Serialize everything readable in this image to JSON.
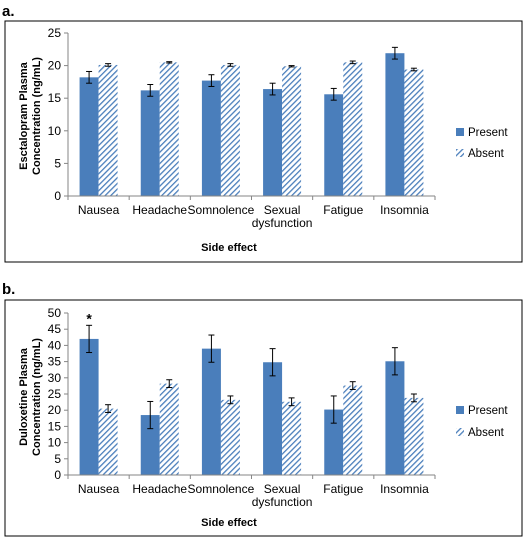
{
  "colors": {
    "present": "#4a7ebb",
    "absent_stripe": "#4a7ebb",
    "axis": "#868686",
    "frame": "#000000",
    "text": "#000000"
  },
  "legend": {
    "present_label": "Present",
    "absent_label": "Absent"
  },
  "chart_data": [
    {
      "type": "bar",
      "panel_label": "a.",
      "categories": [
        "Nausea",
        "Headache",
        "Somnolence",
        "Sexual dysfunction",
        "Fatigue",
        "Insomnia"
      ],
      "category_lines": [
        [
          "Nausea"
        ],
        [
          "Headache"
        ],
        [
          "Somnolence"
        ],
        [
          "Sexual",
          "dysfunction"
        ],
        [
          "Fatigue"
        ],
        [
          "Insomnia"
        ]
      ],
      "series": [
        {
          "name": "Present",
          "values": [
            18.2,
            16.2,
            17.7,
            16.4,
            15.6,
            21.9
          ],
          "errors": [
            0.9,
            0.9,
            0.9,
            0.9,
            0.9,
            0.9
          ]
        },
        {
          "name": "Absent",
          "values": [
            20.1,
            20.5,
            20.1,
            19.9,
            20.5,
            19.4
          ],
          "errors": [
            0.2,
            0.1,
            0.2,
            0.1,
            0.2,
            0.2
          ]
        }
      ],
      "xlabel": "Side effect",
      "ylabel_lines": [
        "Esctalopram Plasma",
        "Concentration (ng/mL)"
      ],
      "ylim": [
        0,
        25
      ],
      "yticks": [
        "0",
        "5",
        "10",
        "15",
        "20",
        "25"
      ],
      "grid": false,
      "legend_position": "right",
      "annotations": []
    },
    {
      "type": "bar",
      "panel_label": "b.",
      "categories": [
        "Nausea",
        "Headache",
        "Somnolence",
        "Sexual dysfunction",
        "Fatigue",
        "Insomnia"
      ],
      "category_lines": [
        [
          "Nausea"
        ],
        [
          "Headache"
        ],
        [
          "Somnolence"
        ],
        [
          "Sexual",
          "dysfunction"
        ],
        [
          "Fatigue"
        ],
        [
          "Insomnia"
        ]
      ],
      "series": [
        {
          "name": "Present",
          "values": [
            42,
            18.5,
            39,
            34.8,
            20.2,
            35.1
          ],
          "errors": [
            4.2,
            4.2,
            4.2,
            4.2,
            4.2,
            4.2
          ]
        },
        {
          "name": "Absent",
          "values": [
            20.5,
            28.2,
            23.2,
            22.6,
            27.6,
            23.8
          ],
          "errors": [
            1.2,
            1.2,
            1.2,
            1.2,
            1.2,
            1.2
          ]
        }
      ],
      "xlabel": "Side effect",
      "ylabel_lines": [
        "Duloxetine Plasma",
        "Concentration (ng/mL)"
      ],
      "ylim": [
        0,
        50
      ],
      "yticks": [
        "0",
        "5",
        "10",
        "15",
        "20",
        "25",
        "30",
        "35",
        "40",
        "45",
        "50"
      ],
      "grid": false,
      "legend_position": "right",
      "annotations": [
        {
          "category": "Nausea",
          "series": "Present",
          "text": "*"
        }
      ]
    }
  ]
}
